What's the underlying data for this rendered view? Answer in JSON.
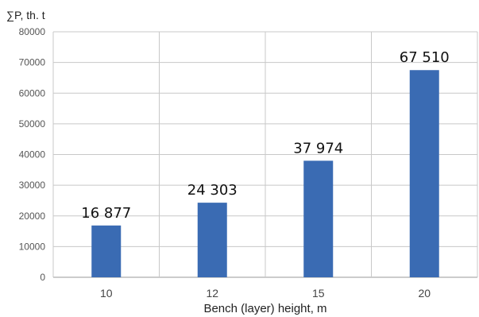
{
  "chart_data": {
    "type": "bar",
    "ylabel": "∑P, th. t",
    "xlabel": "Bench (layer) height, m",
    "categories": [
      "10",
      "12",
      "15",
      "20"
    ],
    "values": [
      16877,
      24303,
      37974,
      67510
    ],
    "data_labels": [
      "16 877",
      "24 303",
      "37 974",
      "67 510"
    ],
    "ylim": [
      0,
      80000
    ],
    "yticks": [
      0,
      10000,
      20000,
      30000,
      40000,
      50000,
      60000,
      70000,
      80000
    ],
    "ytick_labels": [
      "0",
      "10000",
      "20000",
      "30000",
      "40000",
      "50000",
      "60000",
      "70000",
      "80000"
    ],
    "grid": true,
    "bar_color": "#3a6bb3"
  }
}
